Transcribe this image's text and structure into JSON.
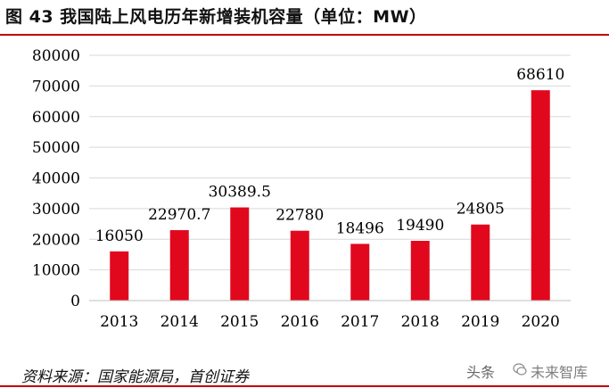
{
  "header": {
    "title": "图 43  我国陆上风电历年新增装机容量（单位：MW）"
  },
  "footer": {
    "source": "资料来源：国家能源局，首创证券",
    "watermark_left": "头条",
    "watermark_right": "未来智库"
  },
  "colors": {
    "bar": "#e1081d",
    "title_rule": "#c00000",
    "grid": "#d9d9d9",
    "axis_text": "#000000"
  },
  "chart_data": {
    "type": "bar",
    "title": "我国陆上风电历年新增装机容量（单位：MW）",
    "xlabel": "",
    "ylabel": "",
    "categories": [
      "2013",
      "2014",
      "2015",
      "2016",
      "2017",
      "2018",
      "2019",
      "2020"
    ],
    "values": [
      16050,
      22970.7,
      30389.5,
      22780,
      18496,
      19490,
      24805,
      68610
    ],
    "data_labels": [
      "16050",
      "22970.7",
      "30389.5",
      "22780",
      "18496",
      "19490",
      "24805",
      "68610"
    ],
    "ylim": [
      0,
      80000
    ],
    "yticks": [
      "0",
      "10000",
      "20000",
      "30000",
      "40000",
      "50000",
      "60000",
      "70000",
      "80000"
    ],
    "grid": true,
    "legend": "none"
  }
}
